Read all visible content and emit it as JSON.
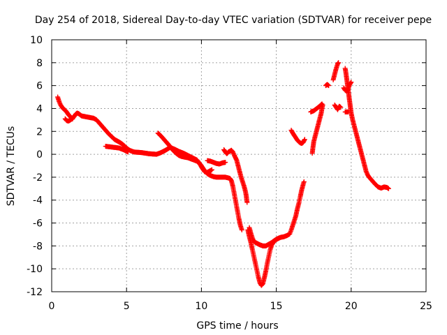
{
  "chart_data": {
    "type": "scatter",
    "title": "Day 254 of 2018, Sidereal Day-to-day VTEC variation (SDTVAR) for receiver pepe",
    "xlabel": "GPS time / hours",
    "ylabel": "SDTVAR / TECUs",
    "xlim": [
      0,
      25
    ],
    "ylim": [
      -12,
      10
    ],
    "grid": true,
    "legend": "none",
    "marker": "+",
    "x_ticks": [
      0,
      5,
      10,
      15,
      20,
      25
    ],
    "x_tick_labels": [
      "0",
      "5",
      "10",
      "15",
      "20",
      "25"
    ],
    "y_ticks": [
      -12,
      -10,
      -8,
      -6,
      -4,
      -2,
      0,
      2,
      4,
      6,
      8,
      10
    ],
    "y_tick_labels": [
      "-12",
      "-10",
      "-8",
      "-6",
      "-4",
      "-2",
      "0",
      "2",
      "4",
      "6",
      "8",
      "10"
    ],
    "series": [
      {
        "name": "SDTVAR",
        "color": "#ff0000",
        "segments": [
          [
            [
              0.4,
              5.0
            ],
            [
              0.5,
              4.6
            ],
            [
              0.6,
              4.3
            ],
            [
              0.7,
              4.1
            ],
            [
              0.8,
              3.95
            ],
            [
              0.9,
              3.85
            ],
            [
              1.0,
              3.7
            ],
            [
              1.1,
              3.5
            ],
            [
              1.2,
              3.35
            ],
            [
              1.3,
              3.2
            ],
            [
              1.4,
              3.15
            ],
            [
              1.5,
              3.3
            ],
            [
              1.6,
              3.5
            ],
            [
              1.7,
              3.6
            ],
            [
              1.8,
              3.55
            ],
            [
              1.9,
              3.45
            ],
            [
              2.0,
              3.35
            ],
            [
              2.2,
              3.3
            ],
            [
              2.4,
              3.25
            ],
            [
              2.6,
              3.2
            ],
            [
              2.8,
              3.15
            ],
            [
              3.0,
              3.0
            ],
            [
              3.2,
              2.7
            ],
            [
              3.4,
              2.4
            ],
            [
              3.6,
              2.1
            ],
            [
              3.8,
              1.8
            ],
            [
              4.0,
              1.55
            ],
            [
              4.2,
              1.3
            ],
            [
              4.4,
              1.15
            ],
            [
              4.6,
              1.0
            ],
            [
              4.8,
              0.8
            ],
            [
              5.0,
              0.55
            ],
            [
              5.2,
              0.35
            ],
            [
              5.5,
              0.2
            ],
            [
              6.0,
              0.15
            ],
            [
              6.5,
              0.05
            ],
            [
              7.0,
              0.0
            ],
            [
              7.3,
              0.15
            ],
            [
              7.6,
              0.35
            ],
            [
              7.9,
              0.6
            ],
            [
              8.2,
              0.45
            ],
            [
              8.5,
              0.25
            ],
            [
              8.8,
              0.1
            ],
            [
              9.1,
              -0.1
            ],
            [
              9.4,
              -0.3
            ],
            [
              9.7,
              -0.5
            ],
            [
              10.0,
              -1.0
            ],
            [
              10.2,
              -1.4
            ],
            [
              10.4,
              -1.7
            ],
            [
              10.6,
              -1.85
            ],
            [
              10.8,
              -1.95
            ],
            [
              11.0,
              -2.0
            ],
            [
              11.3,
              -2.0
            ],
            [
              11.6,
              -2.0
            ],
            [
              11.9,
              -2.1
            ],
            [
              12.0,
              -2.3
            ],
            [
              12.1,
              -2.8
            ],
            [
              12.2,
              -3.5
            ],
            [
              12.3,
              -4.2
            ],
            [
              12.4,
              -4.9
            ],
            [
              12.5,
              -5.6
            ],
            [
              12.6,
              -6.2
            ],
            [
              12.7,
              -6.6
            ]
          ],
          [
            [
              0.9,
              3.1
            ],
            [
              1.0,
              2.95
            ],
            [
              1.1,
              2.9
            ],
            [
              1.2,
              2.95
            ],
            [
              1.3,
              3.05
            ],
            [
              1.4,
              3.1
            ]
          ],
          [
            [
              3.6,
              0.7
            ],
            [
              3.9,
              0.65
            ],
            [
              4.2,
              0.6
            ],
            [
              4.5,
              0.55
            ],
            [
              4.8,
              0.4
            ],
            [
              5.1,
              0.2
            ]
          ],
          [
            [
              7.1,
              1.85
            ],
            [
              7.3,
              1.6
            ],
            [
              7.5,
              1.3
            ],
            [
              7.7,
              1.0
            ],
            [
              7.9,
              0.7
            ],
            [
              8.1,
              0.35
            ],
            [
              8.3,
              0.1
            ],
            [
              8.5,
              -0.1
            ],
            [
              8.7,
              -0.2
            ],
            [
              8.9,
              -0.25
            ],
            [
              9.1,
              -0.3
            ],
            [
              9.3,
              -0.4
            ],
            [
              9.5,
              -0.5
            ],
            [
              9.7,
              -0.6
            ],
            [
              9.9,
              -0.85
            ],
            [
              10.0,
              -1.1
            ],
            [
              10.1,
              -1.3
            ],
            [
              10.2,
              -1.5
            ],
            [
              10.35,
              -1.6
            ],
            [
              10.5,
              -1.5
            ],
            [
              10.7,
              -1.35
            ]
          ],
          [
            [
              10.4,
              -0.55
            ],
            [
              10.6,
              -0.6
            ],
            [
              10.8,
              -0.7
            ],
            [
              11.0,
              -0.8
            ],
            [
              11.2,
              -0.85
            ],
            [
              11.4,
              -0.75
            ],
            [
              11.6,
              -0.7
            ]
          ],
          [
            [
              11.5,
              0.4
            ],
            [
              11.6,
              0.2
            ],
            [
              11.7,
              0.05
            ],
            [
              11.8,
              0.2
            ],
            [
              12.0,
              0.35
            ],
            [
              12.1,
              0.2
            ],
            [
              12.2,
              -0.1
            ],
            [
              12.35,
              -0.5
            ],
            [
              12.45,
              -1.0
            ],
            [
              12.55,
              -1.5
            ],
            [
              12.65,
              -2.0
            ],
            [
              12.75,
              -2.4
            ],
            [
              12.85,
              -2.8
            ],
            [
              12.95,
              -3.3
            ],
            [
              13.0,
              -3.7
            ],
            [
              13.05,
              -4.2
            ]
          ],
          [
            [
              13.2,
              -6.4
            ],
            [
              13.3,
              -6.9
            ],
            [
              13.4,
              -7.3
            ],
            [
              13.5,
              -7.6
            ],
            [
              13.6,
              -7.7
            ],
            [
              13.75,
              -7.8
            ],
            [
              13.9,
              -7.9
            ],
            [
              14.1,
              -8.0
            ],
            [
              14.3,
              -8.0
            ],
            [
              14.5,
              -7.85
            ],
            [
              14.7,
              -7.7
            ],
            [
              14.9,
              -7.5
            ],
            [
              15.1,
              -7.35
            ],
            [
              15.3,
              -7.25
            ],
            [
              15.5,
              -7.2
            ],
            [
              15.7,
              -7.1
            ],
            [
              15.9,
              -6.95
            ],
            [
              16.0,
              -6.6
            ],
            [
              16.1,
              -6.2
            ],
            [
              16.2,
              -5.8
            ],
            [
              16.3,
              -5.4
            ],
            [
              16.4,
              -4.8
            ],
            [
              16.5,
              -4.3
            ],
            [
              16.6,
              -3.7
            ],
            [
              16.7,
              -3.1
            ],
            [
              16.8,
              -2.6
            ],
            [
              16.85,
              -2.4
            ]
          ],
          [
            [
              13.1,
              -6.6
            ],
            [
              13.2,
              -7.2
            ],
            [
              13.3,
              -7.7
            ],
            [
              13.4,
              -8.3
            ],
            [
              13.5,
              -8.9
            ],
            [
              13.6,
              -9.5
            ],
            [
              13.7,
              -10.1
            ],
            [
              13.8,
              -10.7
            ],
            [
              13.9,
              -11.2
            ],
            [
              14.0,
              -11.45
            ],
            [
              14.1,
              -11.3
            ],
            [
              14.2,
              -10.8
            ],
            [
              14.3,
              -10.2
            ],
            [
              14.4,
              -9.5
            ],
            [
              14.5,
              -8.9
            ],
            [
              14.6,
              -8.3
            ],
            [
              14.7,
              -7.9
            ],
            [
              14.85,
              -7.6
            ],
            [
              15.0,
              -7.45
            ],
            [
              15.2,
              -7.3
            ]
          ],
          [
            [
              16.0,
              2.1
            ],
            [
              16.1,
              1.85
            ],
            [
              16.2,
              1.65
            ],
            [
              16.3,
              1.45
            ],
            [
              16.4,
              1.25
            ],
            [
              16.5,
              1.1
            ],
            [
              16.6,
              1.0
            ],
            [
              16.7,
              0.95
            ],
            [
              16.8,
              1.05
            ],
            [
              16.9,
              1.3
            ]
          ],
          [
            [
              17.4,
              0.1
            ],
            [
              17.45,
              0.6
            ],
            [
              17.5,
              1.1
            ],
            [
              17.6,
              1.6
            ],
            [
              17.7,
              2.1
            ],
            [
              17.8,
              2.6
            ],
            [
              17.9,
              3.1
            ],
            [
              18.0,
              3.6
            ],
            [
              18.05,
              4.0
            ],
            [
              18.1,
              4.3
            ]
          ],
          [
            [
              17.3,
              3.7
            ],
            [
              17.5,
              3.8
            ],
            [
              17.7,
              4.0
            ],
            [
              17.9,
              4.2
            ],
            [
              18.05,
              4.4
            ]
          ],
          [
            [
              18.3,
              6.0
            ],
            [
              18.4,
              6.1
            ],
            [
              18.5,
              6.0
            ]
          ],
          [
            [
              18.8,
              6.5
            ],
            [
              18.9,
              7.0
            ],
            [
              19.0,
              7.5
            ],
            [
              19.1,
              7.9
            ],
            [
              19.15,
              8.0
            ]
          ],
          [
            [
              18.9,
              4.3
            ],
            [
              19.0,
              4.1
            ],
            [
              19.1,
              3.9
            ],
            [
              19.2,
              4.2
            ],
            [
              19.3,
              4.1
            ]
          ],
          [
            [
              19.6,
              7.5
            ],
            [
              19.65,
              7.1
            ],
            [
              19.7,
              6.6
            ],
            [
              19.75,
              6.1
            ],
            [
              19.8,
              5.6
            ],
            [
              19.85,
              5.1
            ],
            [
              19.9,
              4.6
            ],
            [
              19.95,
              4.1
            ],
            [
              20.0,
              3.6
            ],
            [
              20.1,
              3.0
            ],
            [
              20.2,
              2.5
            ],
            [
              20.3,
              2.0
            ],
            [
              20.4,
              1.5
            ],
            [
              20.5,
              1.0
            ],
            [
              20.6,
              0.5
            ],
            [
              20.7,
              0.0
            ],
            [
              20.8,
              -0.5
            ],
            [
              20.9,
              -1.0
            ],
            [
              21.0,
              -1.5
            ],
            [
              21.1,
              -1.8
            ],
            [
              21.2,
              -2.0
            ],
            [
              21.4,
              -2.3
            ],
            [
              21.6,
              -2.6
            ],
            [
              21.8,
              -2.85
            ],
            [
              22.0,
              -2.95
            ],
            [
              22.2,
              -2.85
            ],
            [
              22.4,
              -2.9
            ],
            [
              22.5,
              -3.0
            ]
          ],
          [
            [
              19.5,
              5.8
            ],
            [
              19.6,
              5.6
            ],
            [
              19.7,
              5.5
            ],
            [
              19.8,
              5.7
            ],
            [
              19.9,
              6.1
            ],
            [
              20.0,
              6.3
            ]
          ],
          [
            [
              19.6,
              3.7
            ],
            [
              19.8,
              3.7
            ]
          ]
        ]
      }
    ]
  }
}
